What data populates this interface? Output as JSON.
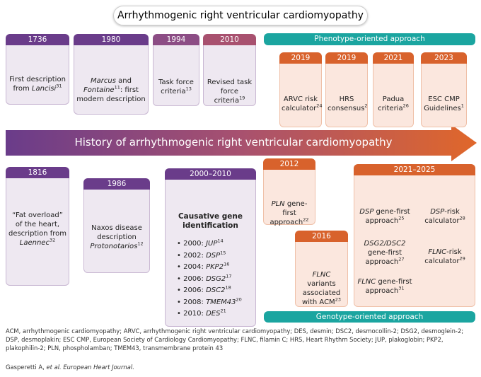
{
  "title": "Arrhythmogenic right ventricular cardiomyopathy",
  "arrow": "History of arrhythmogenic right ventricular cardiomyopathy",
  "phenotype": "Phenotype-oriented approach",
  "genotype": "Genotype-oriented approach",
  "events": [
    {
      "year": "1736",
      "text": [
        "First description from ",
        "Lancisi",
        "31"
      ]
    },
    {
      "year": "1980",
      "text": [
        "Marcus",
        " and ",
        "Fontaine",
        "11",
        ": first modern description"
      ]
    },
    {
      "year": "1994",
      "text": [
        "Task force criteria",
        "13"
      ]
    },
    {
      "year": "2010",
      "text": [
        "Revised task force criteria",
        "19"
      ]
    },
    {
      "year": "2019",
      "text": [
        "ARVC risk calculator",
        "24"
      ]
    },
    {
      "year": "2019",
      "text": [
        "HRS consensus",
        "2"
      ]
    },
    {
      "year": "2021",
      "text": [
        "Padua criteria",
        "26"
      ]
    },
    {
      "year": "2023",
      "text": [
        "ESC CMP Guidelines",
        "1"
      ]
    },
    {
      "year": "1816",
      "text": [
        "“Fat overload” of the heart, description from ",
        "Laennec",
        "32"
      ]
    },
    {
      "year": "1986",
      "text": [
        "Naxos disease description ",
        "Protonotarios",
        "12"
      ]
    },
    {
      "year": "2000–2010",
      "heading": "Causative gene identification",
      "items": [
        [
          "• 2000: ",
          "JUP",
          "14"
        ],
        [
          "• 2002: ",
          "DSP",
          "15"
        ],
        [
          "• 2004: ",
          "PKP2",
          "16"
        ],
        [
          "• 2006: ",
          "DSG2",
          "17"
        ],
        [
          "• 2006: ",
          "DSC2",
          "18"
        ],
        [
          "• 2008: ",
          "TMEM43",
          "20"
        ],
        [
          "• 2010: ",
          "DES",
          "21"
        ]
      ]
    },
    {
      "year": "2012",
      "text": [
        "PLN",
        " gene-first approach",
        "22"
      ]
    },
    {
      "year": "2016",
      "text": [
        "FLNC",
        " variants associated with ACM",
        "23"
      ]
    },
    {
      "year": "2021–2025",
      "items": [
        [
          "DSP",
          " gene-first approach",
          "25"
        ],
        [
          "DSP",
          "-risk calculator",
          "28"
        ],
        [
          "DSG2/DSC2",
          " gene-first approach",
          "27"
        ],
        [
          "FLNC",
          "-risk calculator",
          "29"
        ],
        [
          "FLNC",
          " gene-first approach",
          "31"
        ]
      ]
    }
  ],
  "footnote": "ACM, arrhythmogenic cardiomyopathy; ARVC, arrhythmogenic right ventricular cardiomyopathy; DES, desmin; DSC2, desmocollin-2; DSG2, desmoglein-2; DSP, desmoplakin; ESC CMP, European Society of Cardiology Cardiomyopathy; FLNC, filamin C; HRS, Heart Rhythm Society; JUP, plakoglobin; PKP2, plakophilin-2; PLN, phospholamban; TMEM43, transmembrane protein 43",
  "citation": [
    "Gasperetti A, ",
    "et al. European Heart Journal."
  ]
}
